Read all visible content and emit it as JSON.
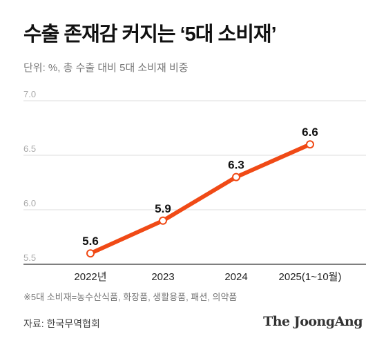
{
  "chart_data": {
    "type": "line",
    "title": "수출 존재감 커지는 ‘5대 소비재’",
    "subtitle": "단위: %, 총 수출 대비 5대 소비재 비중",
    "categories": [
      "2022년",
      "2023",
      "2024",
      "2025(1~10월)"
    ],
    "series": [
      {
        "values": [
          5.6,
          5.9,
          6.3,
          6.6
        ],
        "labels": [
          "5.6",
          "5.9",
          "6.3",
          "6.6"
        ]
      }
    ],
    "ylim": [
      5.5,
      7.0
    ],
    "yticks": [
      5.5,
      6.0,
      6.5,
      7.0
    ],
    "ytick_labels": [
      "5.5",
      "6.0",
      "6.5",
      "7.0"
    ],
    "grid": true,
    "line_color": "#f04a16",
    "marker_fill": "#ffffff"
  },
  "footnote": "※5대 소비재=농수산식품, 화장품, 생활용품, 패션, 의약품",
  "source": "자료: 한국무역협회",
  "brand": "The JoongAng"
}
